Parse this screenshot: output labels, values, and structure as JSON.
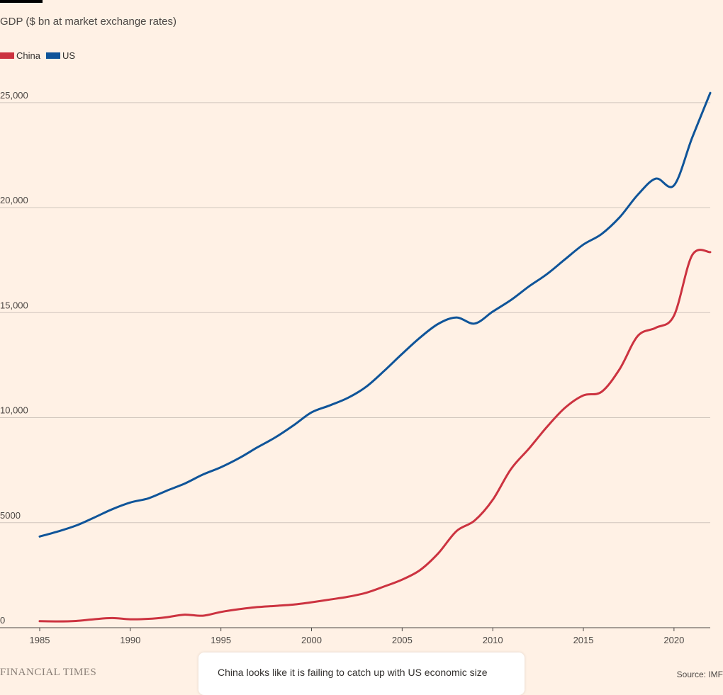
{
  "chart_data": {
    "type": "line",
    "subtitle": "GDP ($ bn at market exchange rates)",
    "xlim": [
      1985,
      2022
    ],
    "ylim": [
      0,
      25500
    ],
    "x_ticks": [
      "1985",
      "1990",
      "1995",
      "2000",
      "2005",
      "2010",
      "2015",
      "2020"
    ],
    "y_ticks": [
      {
        "value": 0,
        "label": "0"
      },
      {
        "value": 5000,
        "label": "5000"
      },
      {
        "value": 10000,
        "label": "10,000"
      },
      {
        "value": 15000,
        "label": "15,000"
      },
      {
        "value": 20000,
        "label": "20,000"
      },
      {
        "value": 25000,
        "label": "25,000"
      }
    ],
    "grid": "horizontal",
    "legend_position": "top-left",
    "x": [
      1985,
      1986,
      1987,
      1988,
      1989,
      1990,
      1991,
      1992,
      1993,
      1994,
      1995,
      1996,
      1997,
      1998,
      1999,
      2000,
      2001,
      2002,
      2003,
      2004,
      2005,
      2006,
      2007,
      2008,
      2009,
      2010,
      2011,
      2012,
      2013,
      2014,
      2015,
      2016,
      2017,
      2018,
      2019,
      2020,
      2021,
      2022
    ],
    "series": [
      {
        "name": "China",
        "color": "#cc3340",
        "values": [
          310,
          300,
          320,
          400,
          460,
          400,
          420,
          500,
          620,
          570,
          750,
          880,
          980,
          1040,
          1100,
          1210,
          1340,
          1470,
          1660,
          1960,
          2290,
          2750,
          3550,
          4600,
          5100,
          6090,
          7550,
          8530,
          9570,
          10480,
          11060,
          11230,
          12310,
          13890,
          14280,
          14860,
          17730,
          17880
        ]
      },
      {
        "name": "US",
        "color": "#0f5499",
        "values": [
          4340,
          4580,
          4860,
          5240,
          5640,
          5960,
          6160,
          6520,
          6860,
          7290,
          7640,
          8070,
          8580,
          9060,
          9630,
          10250,
          10580,
          10940,
          11460,
          12220,
          13040,
          13820,
          14470,
          14770,
          14480,
          15050,
          15600,
          16250,
          16840,
          17550,
          18240,
          18740,
          19540,
          20610,
          21380,
          21060,
          23320,
          25460
        ]
      }
    ]
  },
  "brand": "FINANCIAL TIMES",
  "source": "Source: IMF",
  "tooltip": "China looks like it is failing to catch up with US economic size"
}
